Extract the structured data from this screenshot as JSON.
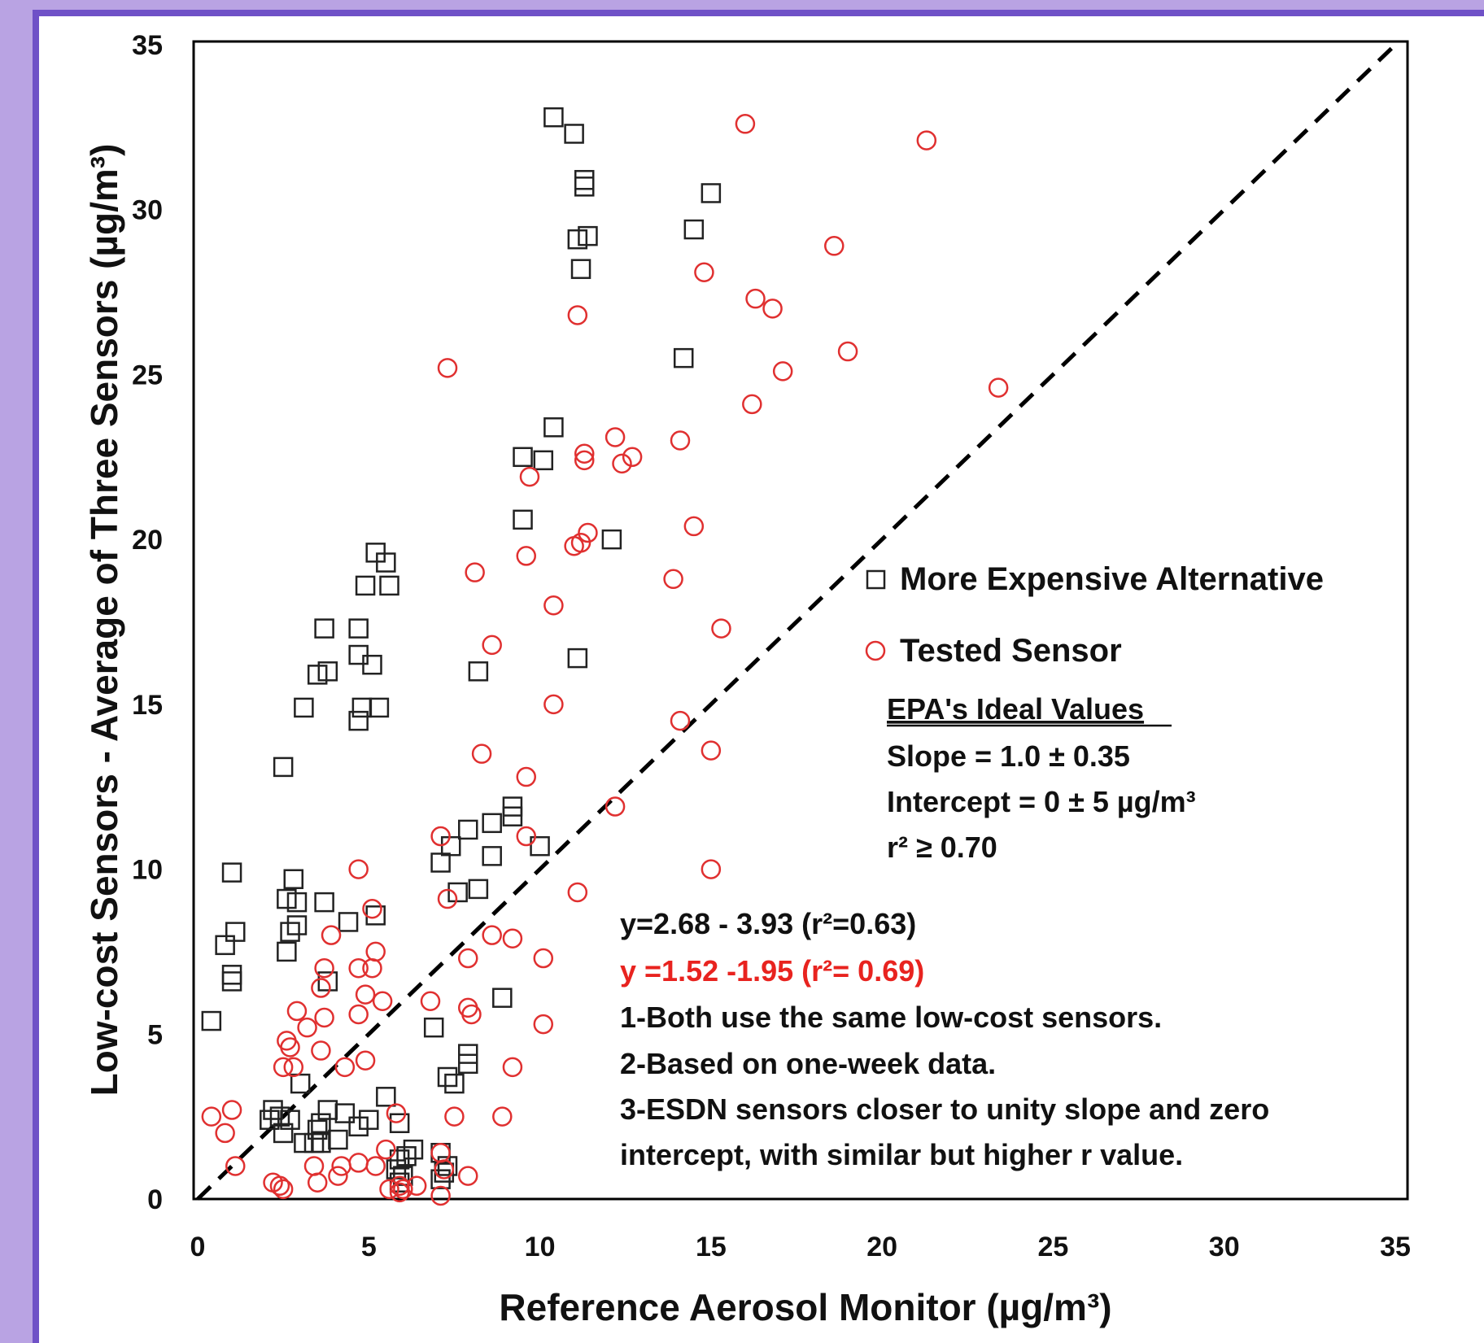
{
  "chart_data": {
    "type": "scatter",
    "xlabel": "Reference Aerosol Monitor (µg/m³)",
    "ylabel": "Low-cost Sensors - Average of Three Sensors (µg/m³)",
    "xlim": [
      0,
      35
    ],
    "ylim": [
      0,
      35
    ],
    "xticks": [
      "0",
      "5",
      "10",
      "15",
      "20",
      "25",
      "30",
      "35"
    ],
    "yticks": [
      "0",
      "5",
      "10",
      "15",
      "20",
      "25",
      "30",
      "35"
    ],
    "grid": false,
    "legend_position": "right",
    "reference_line": {
      "style": "dashed",
      "from": [
        0,
        0
      ],
      "to": [
        35,
        35
      ],
      "color": "#000000"
    },
    "series": [
      {
        "name": "More Expensive Alternative",
        "marker": "square",
        "color": "#222222",
        "points": [
          [
            10.4,
            32.8
          ],
          [
            11.0,
            32.3
          ],
          [
            11.3,
            30.9
          ],
          [
            11.3,
            30.7
          ],
          [
            15.0,
            30.5
          ],
          [
            11.4,
            29.2
          ],
          [
            11.1,
            29.1
          ],
          [
            14.5,
            29.4
          ],
          [
            11.2,
            28.2
          ],
          [
            14.2,
            25.5
          ],
          [
            10.4,
            23.4
          ],
          [
            9.5,
            22.5
          ],
          [
            10.1,
            22.4
          ],
          [
            9.5,
            20.6
          ],
          [
            12.1,
            20.0
          ],
          [
            5.2,
            19.6
          ],
          [
            5.5,
            19.3
          ],
          [
            4.9,
            18.6
          ],
          [
            5.6,
            18.6
          ],
          [
            3.7,
            17.3
          ],
          [
            4.7,
            17.3
          ],
          [
            4.7,
            16.5
          ],
          [
            5.1,
            16.2
          ],
          [
            3.5,
            15.9
          ],
          [
            3.8,
            16.0
          ],
          [
            11.1,
            16.4
          ],
          [
            8.2,
            16.0
          ],
          [
            3.1,
            14.9
          ],
          [
            4.8,
            14.9
          ],
          [
            5.3,
            14.9
          ],
          [
            4.7,
            14.5
          ],
          [
            2.5,
            13.1
          ],
          [
            9.2,
            11.9
          ],
          [
            9.2,
            11.6
          ],
          [
            8.6,
            11.4
          ],
          [
            7.9,
            11.2
          ],
          [
            7.4,
            10.7
          ],
          [
            7.1,
            10.2
          ],
          [
            8.6,
            10.4
          ],
          [
            10.0,
            10.7
          ],
          [
            1.0,
            9.9
          ],
          [
            2.8,
            9.7
          ],
          [
            2.6,
            9.1
          ],
          [
            2.9,
            9.0
          ],
          [
            3.7,
            9.0
          ],
          [
            7.6,
            9.3
          ],
          [
            8.2,
            9.4
          ],
          [
            5.2,
            8.6
          ],
          [
            4.4,
            8.4
          ],
          [
            2.9,
            8.3
          ],
          [
            2.7,
            8.1
          ],
          [
            1.1,
            8.1
          ],
          [
            0.8,
            7.7
          ],
          [
            2.6,
            7.5
          ],
          [
            1.0,
            6.8
          ],
          [
            1.0,
            6.6
          ],
          [
            3.8,
            6.6
          ],
          [
            0.4,
            5.4
          ],
          [
            8.9,
            6.1
          ],
          [
            6.9,
            5.2
          ],
          [
            7.9,
            4.4
          ],
          [
            7.9,
            4.1
          ],
          [
            7.3,
            3.7
          ],
          [
            7.5,
            3.5
          ],
          [
            3.0,
            3.5
          ],
          [
            5.5,
            3.1
          ],
          [
            2.2,
            2.7
          ],
          [
            3.8,
            2.7
          ],
          [
            4.3,
            2.6
          ],
          [
            2.4,
            2.5
          ],
          [
            2.7,
            2.4
          ],
          [
            2.1,
            2.4
          ],
          [
            5.0,
            2.4
          ],
          [
            5.9,
            2.3
          ],
          [
            3.6,
            2.3
          ],
          [
            4.7,
            2.2
          ],
          [
            3.5,
            2.1
          ],
          [
            2.5,
            2.0
          ],
          [
            4.1,
            1.8
          ],
          [
            3.4,
            1.7
          ],
          [
            3.1,
            1.7
          ],
          [
            3.6,
            1.7
          ],
          [
            6.3,
            1.5
          ],
          [
            7.1,
            1.4
          ],
          [
            5.9,
            1.2
          ],
          [
            6.1,
            1.3
          ],
          [
            7.3,
            1.0
          ],
          [
            5.8,
            0.9
          ],
          [
            7.2,
            0.8
          ],
          [
            6.0,
            0.7
          ],
          [
            7.1,
            0.6
          ],
          [
            5.9,
            0.5
          ]
        ]
      },
      {
        "name": "Tested Sensor",
        "marker": "circle",
        "color": "#e03030",
        "points": [
          [
            16.0,
            32.6
          ],
          [
            21.3,
            32.1
          ],
          [
            18.6,
            28.9
          ],
          [
            14.8,
            28.1
          ],
          [
            16.3,
            27.3
          ],
          [
            16.8,
            27.0
          ],
          [
            11.1,
            26.8
          ],
          [
            19.0,
            25.7
          ],
          [
            7.3,
            25.2
          ],
          [
            17.1,
            25.1
          ],
          [
            23.4,
            24.6
          ],
          [
            16.2,
            24.1
          ],
          [
            12.2,
            23.1
          ],
          [
            14.1,
            23.0
          ],
          [
            11.3,
            22.6
          ],
          [
            11.3,
            22.4
          ],
          [
            12.7,
            22.5
          ],
          [
            12.4,
            22.3
          ],
          [
            9.7,
            21.9
          ],
          [
            14.5,
            20.4
          ],
          [
            11.4,
            20.2
          ],
          [
            11.2,
            19.9
          ],
          [
            11.0,
            19.8
          ],
          [
            9.6,
            19.5
          ],
          [
            8.1,
            19.0
          ],
          [
            13.9,
            18.8
          ],
          [
            10.4,
            18.0
          ],
          [
            15.3,
            17.3
          ],
          [
            8.6,
            16.8
          ],
          [
            10.4,
            15.0
          ],
          [
            14.1,
            14.5
          ],
          [
            15.0,
            13.6
          ],
          [
            8.3,
            13.5
          ],
          [
            9.6,
            12.8
          ],
          [
            12.2,
            11.9
          ],
          [
            9.6,
            11.0
          ],
          [
            7.1,
            11.0
          ],
          [
            4.7,
            10.0
          ],
          [
            15.0,
            10.0
          ],
          [
            11.1,
            9.3
          ],
          [
            7.3,
            9.1
          ],
          [
            5.1,
            8.8
          ],
          [
            3.9,
            8.0
          ],
          [
            8.6,
            8.0
          ],
          [
            9.2,
            7.9
          ],
          [
            5.2,
            7.5
          ],
          [
            7.9,
            7.3
          ],
          [
            10.1,
            7.3
          ],
          [
            3.7,
            7.0
          ],
          [
            4.7,
            7.0
          ],
          [
            5.1,
            7.0
          ],
          [
            3.6,
            6.4
          ],
          [
            4.9,
            6.2
          ],
          [
            5.4,
            6.0
          ],
          [
            6.8,
            6.0
          ],
          [
            7.9,
            5.8
          ],
          [
            2.9,
            5.7
          ],
          [
            4.7,
            5.6
          ],
          [
            8.0,
            5.6
          ],
          [
            3.7,
            5.5
          ],
          [
            10.1,
            5.3
          ],
          [
            3.2,
            5.2
          ],
          [
            2.6,
            4.8
          ],
          [
            2.7,
            4.6
          ],
          [
            3.6,
            4.5
          ],
          [
            4.9,
            4.2
          ],
          [
            2.5,
            4.0
          ],
          [
            2.8,
            4.0
          ],
          [
            4.3,
            4.0
          ],
          [
            9.2,
            4.0
          ],
          [
            1.0,
            2.7
          ],
          [
            0.4,
            2.5
          ],
          [
            5.8,
            2.6
          ],
          [
            7.5,
            2.5
          ],
          [
            8.9,
            2.5
          ],
          [
            0.8,
            2.0
          ],
          [
            5.5,
            1.5
          ],
          [
            4.7,
            1.1
          ],
          [
            3.4,
            1.0
          ],
          [
            4.2,
            1.0
          ],
          [
            5.2,
            1.0
          ],
          [
            1.1,
            1.0
          ],
          [
            7.1,
            1.4
          ],
          [
            7.2,
            0.9
          ],
          [
            4.1,
            0.7
          ],
          [
            7.9,
            0.7
          ],
          [
            2.2,
            0.5
          ],
          [
            3.5,
            0.5
          ],
          [
            2.4,
            0.4
          ],
          [
            6.4,
            0.4
          ],
          [
            5.9,
            0.4
          ],
          [
            5.6,
            0.3
          ],
          [
            2.5,
            0.3
          ],
          [
            6.0,
            0.3
          ],
          [
            7.1,
            0.1
          ],
          [
            5.9,
            0.2
          ]
        ]
      }
    ],
    "legend_items": [
      {
        "label": "More Expensive Alternative",
        "marker": "square",
        "color": "#222222"
      },
      {
        "label": "Tested Sensor",
        "marker": "circle",
        "color": "#e03030"
      }
    ],
    "annotations": {
      "epa_title": "EPA's Ideal Values",
      "epa_lines": [
        "Slope = 1.0 ± 0.35",
        "Intercept = 0 ± 5 µg/m³",
        "r² ≥ 0.70"
      ],
      "eq_black": "y=2.68 - 3.93 (r²=0.63)",
      "eq_red": "y =1.52 -1.95 (r²= 0.69)",
      "notes": [
        "1-Both use the same low-cost sensors.",
        "2-Based on one-week data.",
        "3-ESDN sensors closer to unity slope and zero",
        "intercept, with similar but higher r value."
      ]
    }
  }
}
